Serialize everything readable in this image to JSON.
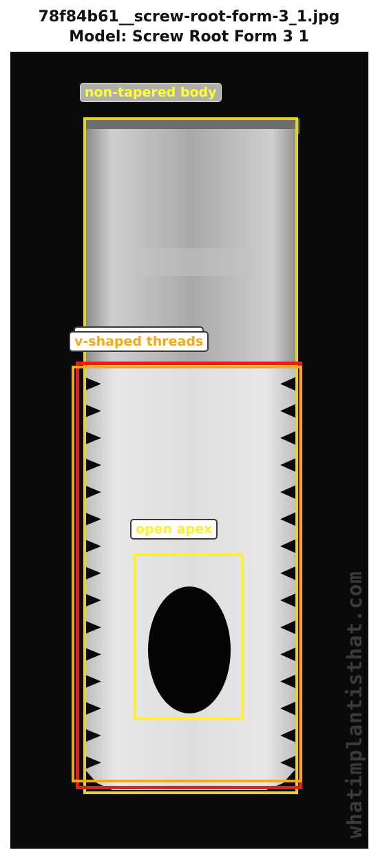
{
  "header": {
    "filename": "78f84b61__screw-root-form-3_1.jpg",
    "model_line": "Model: Screw Root Form 3 1"
  },
  "image": {
    "watermark": "whatimplantisthat.com"
  },
  "annotations": [
    {
      "id": "non-tapered-body",
      "label": "non-tapered body",
      "box_color": "#e6d422",
      "text_color": "#ffff33",
      "label_bg": "#b0b0a8"
    },
    {
      "id": "threaded-region",
      "label": "threaded region",
      "box_color": "#e02020",
      "text_color": "#f0a0a0",
      "label_bg": "#ffffff"
    },
    {
      "id": "v-shaped-threads",
      "label": "v-shaped threads",
      "box_color": "#f2a91a",
      "text_color": "#f2a91a",
      "label_bg": "#ffffff"
    },
    {
      "id": "open-apex",
      "label": "open apex",
      "box_color": "#ffee33",
      "text_color": "#ffee33",
      "label_bg": "#ffffff"
    }
  ]
}
